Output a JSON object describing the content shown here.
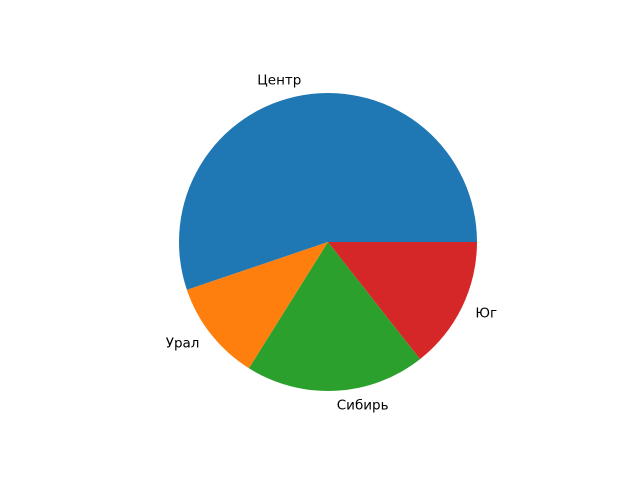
{
  "chart_data": {
    "type": "pie",
    "title": "",
    "labels": [
      "Центр",
      "Урал",
      "Сибирь",
      "Юг"
    ],
    "values_percent": [
      55.2,
      10.9,
      19.5,
      14.4
    ],
    "colors": [
      "#1f77b4",
      "#ff7f0e",
      "#2ca02c",
      "#d62728"
    ],
    "start_angle_deg": 0,
    "direction": "counterclockwise",
    "label_distance": 1.1,
    "legend_position": "none",
    "background_color": "#ffffff",
    "text_color": "#000000"
  }
}
